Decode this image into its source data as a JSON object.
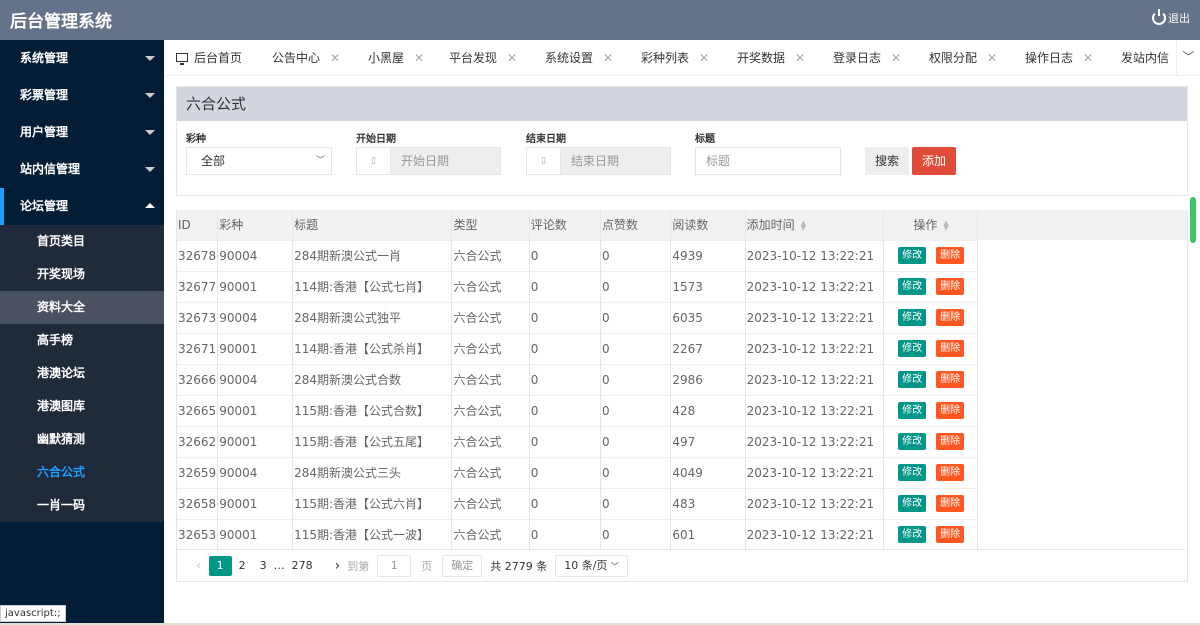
{
  "header": {
    "title": "后台管理系统",
    "logout": "退出"
  },
  "sidebar": {
    "menus": [
      {
        "label": "系统管理"
      },
      {
        "label": "彩票管理"
      },
      {
        "label": "用户管理"
      },
      {
        "label": "站内信管理"
      },
      {
        "label": "论坛管理",
        "open": true
      }
    ],
    "submenu": [
      {
        "label": "首页类目"
      },
      {
        "label": "开奖现场"
      },
      {
        "label": "资料大全",
        "hover": true
      },
      {
        "label": "高手榜"
      },
      {
        "label": "港澳论坛"
      },
      {
        "label": "港澳图库"
      },
      {
        "label": "幽默猜测"
      },
      {
        "label": "六合公式",
        "active": true
      },
      {
        "label": "一肖一码"
      }
    ]
  },
  "status_bar": "javascript:;",
  "tabs": [
    {
      "label": "后台首页"
    },
    {
      "label": "公告中心"
    },
    {
      "label": "小黑屋"
    },
    {
      "label": "平台发现"
    },
    {
      "label": "系统设置"
    },
    {
      "label": "彩种列表"
    },
    {
      "label": "开奖数据"
    },
    {
      "label": "登录日志"
    },
    {
      "label": "权限分配"
    },
    {
      "label": "操作日志"
    },
    {
      "label": "发站内信"
    }
  ],
  "panel": {
    "title": "六合公式",
    "filters": {
      "lottery_label": "彩种",
      "lottery_value": "全部",
      "start_label": "开始日期",
      "start_placeholder": "开始日期",
      "end_label": "结束日期",
      "end_placeholder": "结束日期",
      "title_label": "标题",
      "title_placeholder": "标题"
    },
    "search_btn": "搜索",
    "add_btn": "添加"
  },
  "table": {
    "columns": [
      "ID",
      "彩种",
      "标题",
      "类型",
      "评论数",
      "点赞数",
      "阅读数",
      "添加时间",
      "操作"
    ],
    "edit_label": "修改",
    "delete_label": "删除",
    "rows": [
      [
        "32678",
        "90004",
        "284期新澳公式一肖",
        "六合公式",
        "0",
        "0",
        "4939",
        "2023-10-12 13:22:21"
      ],
      [
        "32677",
        "90001",
        "114期:香港【公式七肖】",
        "六合公式",
        "0",
        "0",
        "1573",
        "2023-10-12 13:22:21"
      ],
      [
        "32673",
        "90004",
        "284期新澳公式独平",
        "六合公式",
        "0",
        "0",
        "6035",
        "2023-10-12 13:22:21"
      ],
      [
        "32671",
        "90001",
        "114期:香港【公式杀肖】",
        "六合公式",
        "0",
        "0",
        "2267",
        "2023-10-12 13:22:21"
      ],
      [
        "32666",
        "90004",
        "284期新澳公式合数",
        "六合公式",
        "0",
        "0",
        "2986",
        "2023-10-12 13:22:21"
      ],
      [
        "32665",
        "90001",
        "115期:香港【公式合数】",
        "六合公式",
        "0",
        "0",
        "428",
        "2023-10-12 13:22:21"
      ],
      [
        "32662",
        "90001",
        "115期:香港【公式五尾】",
        "六合公式",
        "0",
        "0",
        "497",
        "2023-10-12 13:22:21"
      ],
      [
        "32659",
        "90004",
        "284期新澳公式三头",
        "六合公式",
        "0",
        "0",
        "4049",
        "2023-10-12 13:22:21"
      ],
      [
        "32658",
        "90001",
        "115期:香港【公式六肖】",
        "六合公式",
        "0",
        "0",
        "483",
        "2023-10-12 13:22:21"
      ],
      [
        "32653",
        "90001",
        "115期:香港【公式一波】",
        "六合公式",
        "0",
        "0",
        "601",
        "2023-10-12 13:22:21"
      ]
    ]
  },
  "pagination": {
    "prev": "‹",
    "pages": [
      "1",
      "2",
      "3"
    ],
    "ellipsis": "…",
    "last": "278",
    "next": "›",
    "goto_label": "到第",
    "goto_value": "1",
    "page_unit": "页",
    "confirm": "确定",
    "total": "共 2779 条",
    "page_size": "10 条/页"
  },
  "colors": {
    "header": "#637389",
    "sidebar": "#041d37",
    "accent": "#009688",
    "danger": "#ff5722",
    "add": "#e04b3a",
    "active_link": "#1e9fff"
  }
}
